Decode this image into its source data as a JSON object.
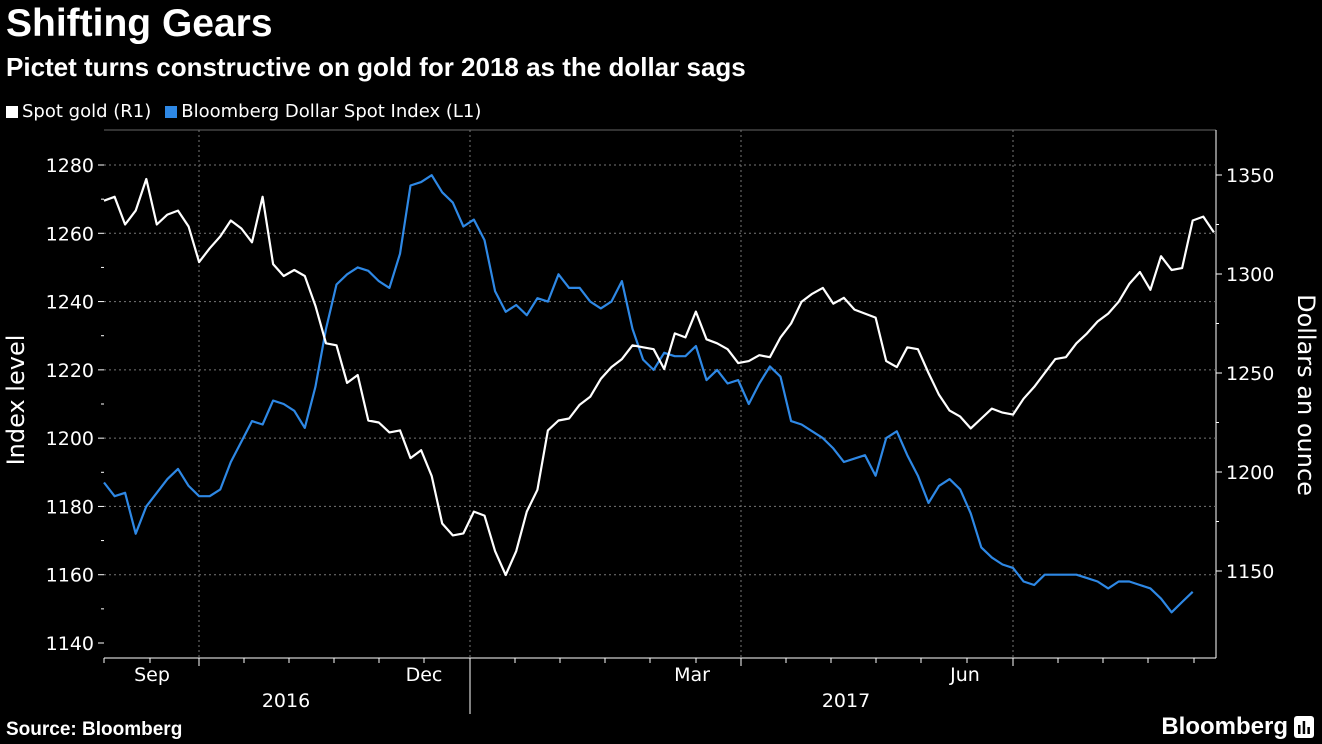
{
  "header": {
    "title": "Shifting Gears",
    "subtitle": "Pictet turns constructive on gold for 2018 as the dollar sags"
  },
  "footer": {
    "source": "Source: Bloomberg",
    "brand": "Bloomberg"
  },
  "colors": {
    "background": "#000000",
    "gold": "#ffffff",
    "dollar": "#2e88e5",
    "grid": "#888888"
  },
  "chart_data": {
    "type": "line",
    "title": "Shifting Gears",
    "subtitle": "Pictet turns constructive on gold for 2018 as the dollar sags",
    "x_unit": "weeks starting 2016-08-22 (week 0) to 2017-12-04",
    "legend": [
      {
        "name": "Spot gold (R1)",
        "color": "#ffffff"
      },
      {
        "name": "Bloomberg Dollar Spot Index (L1)",
        "color": "#2e88e5"
      }
    ],
    "legend_placement": "top-left",
    "grid": true,
    "left_axis": {
      "label": "Index level",
      "range": [
        1140,
        1280
      ],
      "ticks": [
        "1140",
        "1160",
        "1180",
        "1200",
        "1220",
        "1240",
        "1260",
        "1280"
      ]
    },
    "right_axis": {
      "label": "Dollars an ounce",
      "range": [
        1150,
        1350
      ],
      "ticks": [
        "1150",
        "1200",
        "1250",
        "1300",
        "1350"
      ]
    },
    "x_axis": {
      "month_labels": [
        "Sep",
        "Dec",
        "Mar",
        "Jun"
      ],
      "year_labels": [
        "2016",
        "2017"
      ]
    },
    "series": [
      {
        "name": "Spot gold (R1)",
        "axis": "right",
        "values": [
          1337,
          1339,
          1325,
          1332,
          1348,
          1325,
          1330,
          1332,
          1324,
          1306,
          1313,
          1319,
          1327,
          1323,
          1316,
          1339,
          1305,
          1299,
          1302,
          1299,
          1284,
          1265,
          1264,
          1245,
          1249,
          1226,
          1225,
          1220,
          1221,
          1207,
          1211,
          1198,
          1174,
          1168,
          1169,
          1180,
          1178,
          1160,
          1148,
          1160,
          1180,
          1191,
          1221,
          1226,
          1227,
          1234,
          1238,
          1247,
          1253,
          1257,
          1264,
          1263,
          1262,
          1252,
          1270,
          1268,
          1281,
          1267,
          1265,
          1262,
          1255,
          1256,
          1259,
          1258,
          1268,
          1275,
          1286,
          1290,
          1293,
          1285,
          1288,
          1282,
          1280,
          1278,
          1256,
          1253,
          1263,
          1262,
          1250,
          1239,
          1231,
          1228,
          1222,
          1227,
          1232,
          1230,
          1229,
          1237,
          1243,
          1250,
          1257,
          1258,
          1265,
          1270,
          1276,
          1280,
          1286,
          1295,
          1301,
          1292,
          1309,
          1302,
          1303,
          1327,
          1329,
          1321
        ]
      },
      {
        "name": "Bloomberg Dollar Spot Index (L1)",
        "axis": "left",
        "values": [
          1187,
          1183,
          1184,
          1172,
          1180,
          1184,
          1188,
          1191,
          1186,
          1183,
          1183,
          1185,
          1193,
          1199,
          1205,
          1204,
          1211,
          1210,
          1208,
          1203,
          1215,
          1232,
          1245,
          1248,
          1250,
          1249,
          1246,
          1244,
          1254,
          1274,
          1275,
          1277,
          1272,
          1269,
          1262,
          1264,
          1258,
          1243,
          1237,
          1239,
          1236,
          1241,
          1240,
          1248,
          1244,
          1244,
          1240,
          1238,
          1240,
          1246,
          1232,
          1223,
          1220,
          1225,
          1224,
          1224,
          1227,
          1217,
          1220,
          1216,
          1217,
          1210,
          1216,
          1221,
          1218,
          1205,
          1204,
          1202,
          1200,
          1197,
          1193,
          1194,
          1195,
          1189,
          1200,
          1202,
          1195,
          1189,
          1181,
          1186,
          1188,
          1185,
          1178,
          1168,
          1165,
          1163,
          1162,
          1158,
          1157,
          1160,
          1160,
          1160,
          1160,
          1159,
          1158,
          1156,
          1158,
          1158,
          1157,
          1156,
          1153,
          1149,
          1152,
          1155
        ]
      }
    ]
  }
}
